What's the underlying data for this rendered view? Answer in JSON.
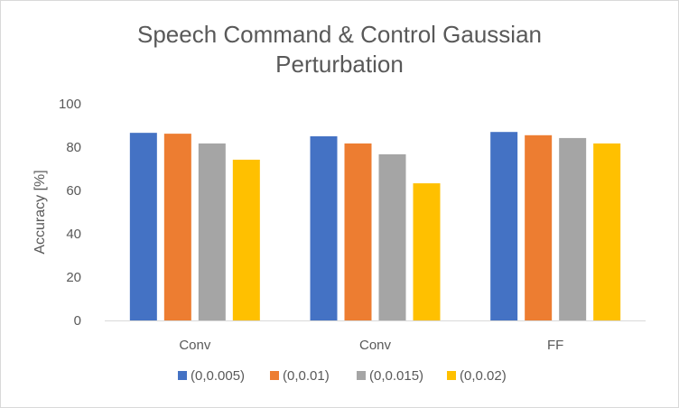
{
  "chart_data": {
    "type": "bar",
    "title_lines": [
      "Speech Command & Control Gaussian",
      "Perturbation"
    ],
    "xlabel": "",
    "ylabel": "Accuracy [%]",
    "ylim": [
      0,
      100
    ],
    "yticks": [
      0,
      20,
      40,
      60,
      80,
      100
    ],
    "categories": [
      "Conv",
      "Conv",
      "FF"
    ],
    "series": [
      {
        "name": "(0,0.005)",
        "color": "#4472C4",
        "values": [
          86.6,
          85.0,
          87.0
        ]
      },
      {
        "name": "(0,0.01)",
        "color": "#ED7D31",
        "values": [
          86.2,
          81.7,
          85.5
        ]
      },
      {
        "name": "(0,0.015)",
        "color": "#A5A5A5",
        "values": [
          81.7,
          76.7,
          84.2
        ]
      },
      {
        "name": "(0,0.02)",
        "color": "#FFC000",
        "values": [
          74.2,
          63.3,
          81.7
        ]
      }
    ],
    "grid": false,
    "legend": "bottom"
  }
}
